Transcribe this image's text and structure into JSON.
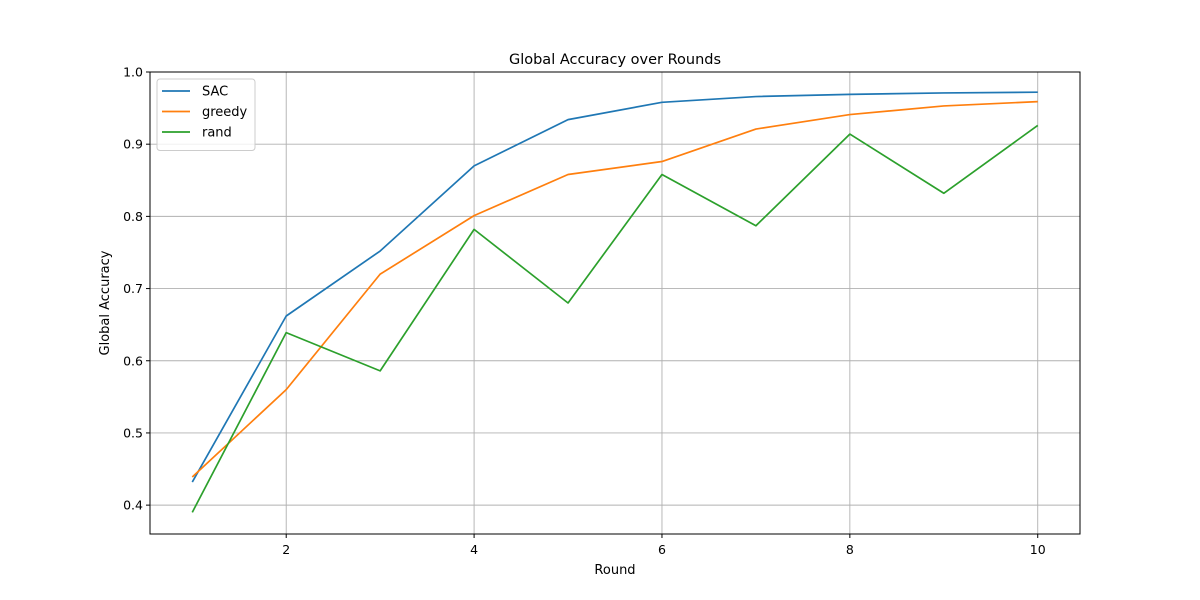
{
  "chart_data": {
    "type": "line",
    "title": "Global Accuracy over Rounds",
    "xlabel": "Round",
    "ylabel": "Global Accuracy",
    "xlim": [
      0.55,
      10.45
    ],
    "ylim": [
      0.36,
      1.0
    ],
    "xticks": [
      2,
      4,
      6,
      8,
      10
    ],
    "yticks": [
      0.4,
      0.5,
      0.6,
      0.7,
      0.8,
      0.9,
      1.0
    ],
    "xtick_labels": [
      "2",
      "4",
      "6",
      "8",
      "10"
    ],
    "ytick_labels": [
      "0.4",
      "0.5",
      "0.6",
      "0.7",
      "0.8",
      "0.9",
      "1.0"
    ],
    "grid": true,
    "legend_position": "top-left",
    "x": [
      1,
      2,
      3,
      4,
      5,
      6,
      7,
      8,
      9,
      10
    ],
    "series": [
      {
        "name": "SAC",
        "color": "#1f77b4",
        "values": [
          0.432,
          0.662,
          0.752,
          0.87,
          0.934,
          0.958,
          0.966,
          0.969,
          0.971,
          0.972
        ]
      },
      {
        "name": "greedy",
        "color": "#ff7f0e",
        "values": [
          0.439,
          0.56,
          0.72,
          0.801,
          0.858,
          0.876,
          0.921,
          0.941,
          0.953,
          0.959
        ]
      },
      {
        "name": "rand",
        "color": "#2ca02c",
        "values": [
          0.39,
          0.639,
          0.586,
          0.782,
          0.68,
          0.858,
          0.787,
          0.914,
          0.832,
          0.926
        ]
      }
    ]
  }
}
